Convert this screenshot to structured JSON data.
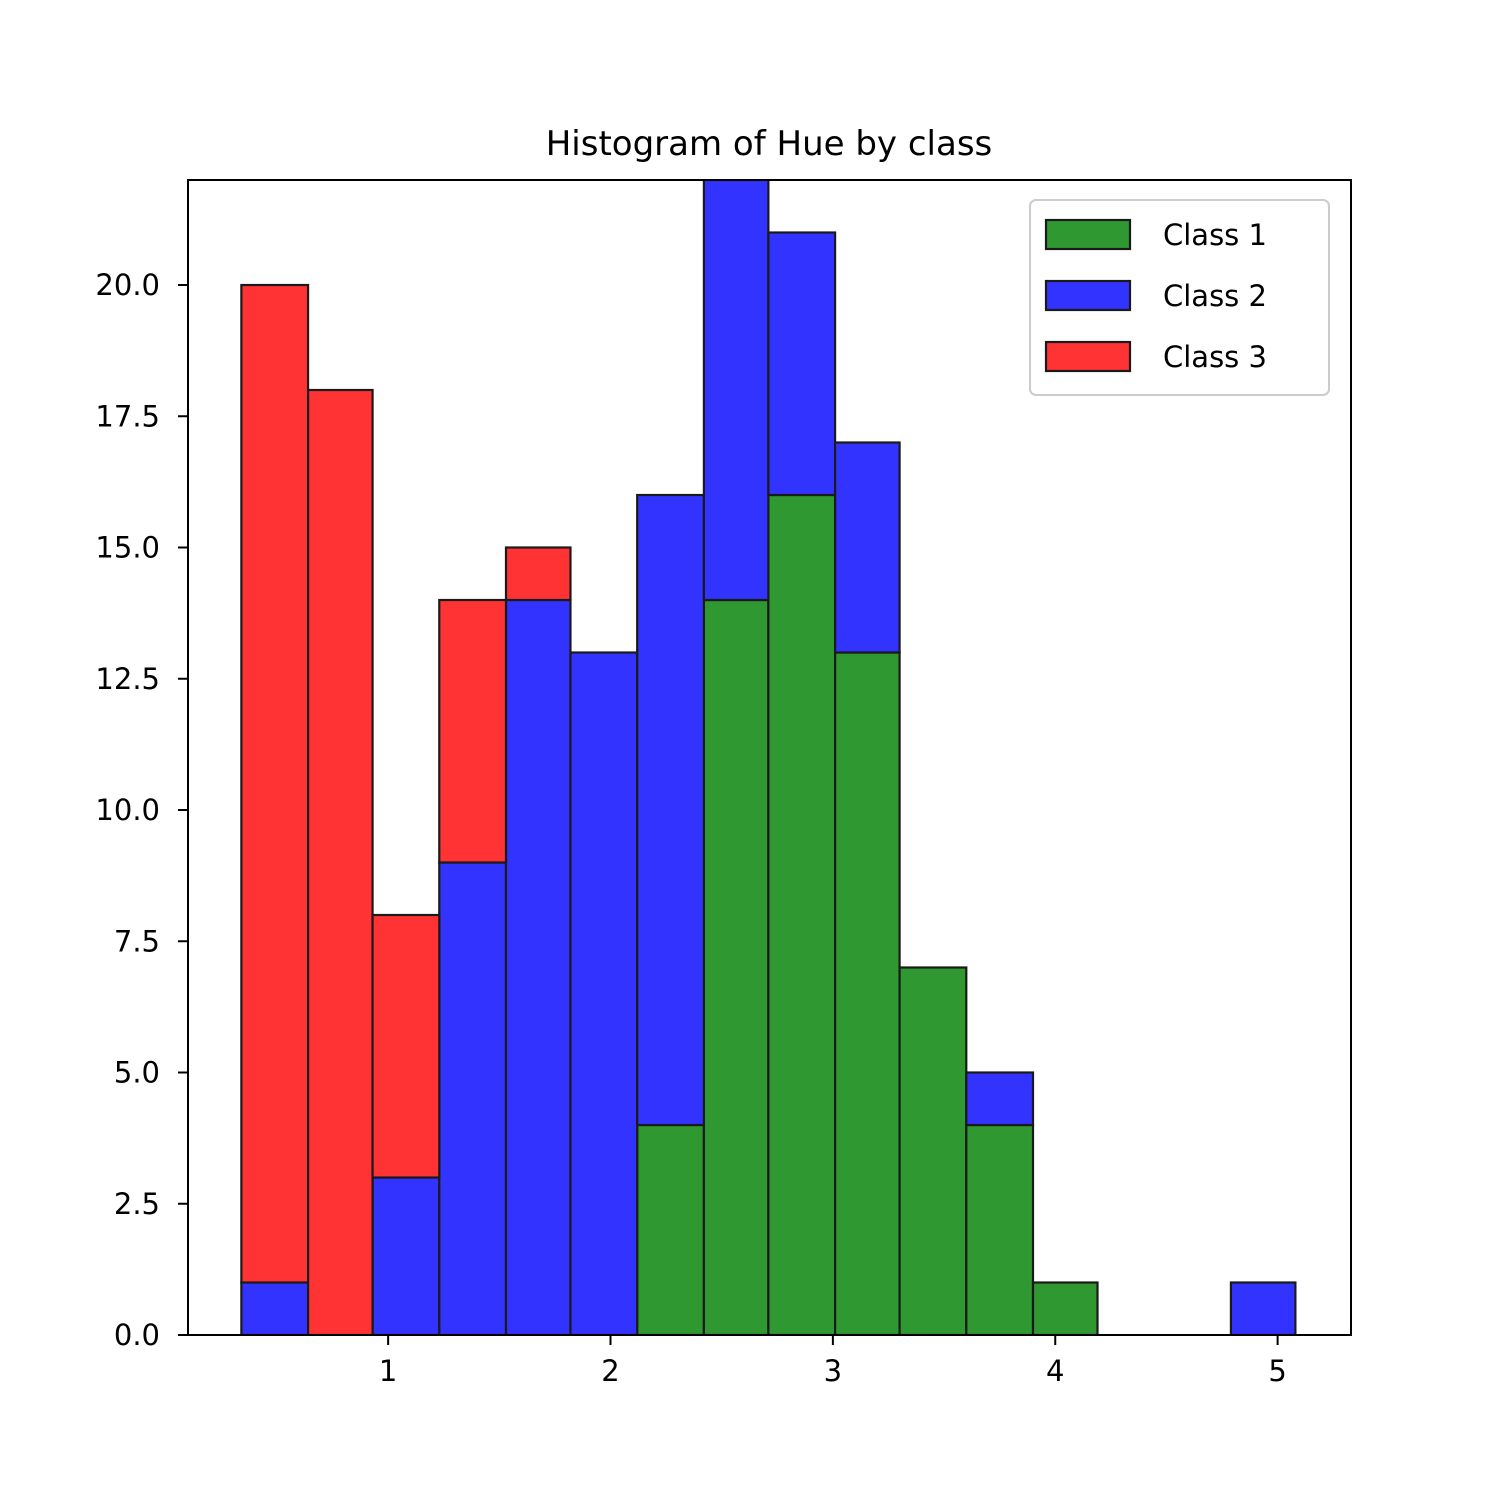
{
  "chart_data": {
    "type": "bar",
    "stacked": true,
    "title": "Histogram of Hue by class",
    "xlabel": "",
    "ylabel": "",
    "xlim": [
      0.1,
      5.33
    ],
    "ylim": [
      0,
      22
    ],
    "xticks": [
      1,
      2,
      3,
      4,
      5
    ],
    "xtick_labels": [
      "1",
      "2",
      "3",
      "4",
      "5"
    ],
    "yticks": [
      0,
      2.5,
      5,
      7.5,
      10,
      12.5,
      15,
      17.5,
      20
    ],
    "ytick_labels": [
      "0.0",
      "2.5",
      "5.0",
      "7.5",
      "10.0",
      "12.5",
      "15.0",
      "17.5",
      "20.0"
    ],
    "bin_edges": [
      0.34,
      0.64,
      0.93,
      1.23,
      1.53,
      1.82,
      2.12,
      2.42,
      2.71,
      3.01,
      3.3,
      3.6,
      3.9,
      4.19,
      4.49,
      4.79,
      5.08
    ],
    "series": [
      {
        "name": "Class 1",
        "color": "#309830",
        "values": [
          0,
          0,
          0,
          0,
          0,
          0,
          4,
          14,
          16,
          13,
          7,
          4,
          1,
          0,
          0,
          0
        ]
      },
      {
        "name": "Class 2",
        "color": "#3333ff",
        "values": [
          1,
          0,
          3,
          9,
          14,
          13,
          12,
          8,
          5,
          4,
          0,
          1,
          0,
          0,
          0,
          1
        ]
      },
      {
        "name": "Class 3",
        "color": "#ff3333",
        "values": [
          19,
          18,
          5,
          5,
          1,
          0,
          0,
          0,
          0,
          0,
          0,
          0,
          0,
          0,
          0,
          0
        ]
      }
    ],
    "legend_position": "upper right",
    "grid": false
  }
}
